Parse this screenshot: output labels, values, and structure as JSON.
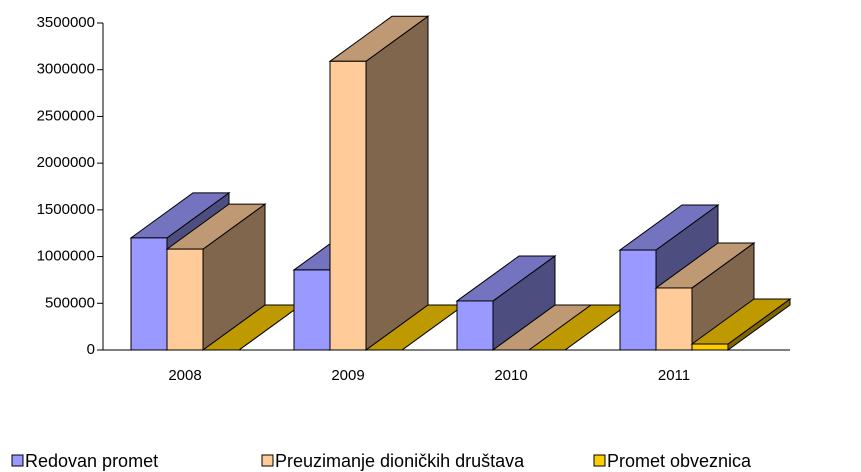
{
  "chart_data": {
    "type": "bar3d",
    "categories": [
      "2008",
      "2009",
      "2010",
      "2011"
    ],
    "series": [
      {
        "name": "Redovan promet",
        "color": "#9999ff",
        "values": [
          1200000,
          857000,
          525000,
          1070000
        ]
      },
      {
        "name": "Preuzimanje dioničkih društava",
        "color": "#ffcc99",
        "values": [
          1080000,
          3090000,
          0,
          664000
        ]
      },
      {
        "name": "Promet obveznica",
        "color": "#ffcc00",
        "values": [
          0,
          0,
          0,
          64000
        ]
      }
    ],
    "ylim": [
      0,
      3500000
    ],
    "yticks": [
      0,
      500000,
      1000000,
      1500000,
      2000000,
      2500000,
      3000000,
      3500000
    ],
    "legend": "bottom"
  }
}
